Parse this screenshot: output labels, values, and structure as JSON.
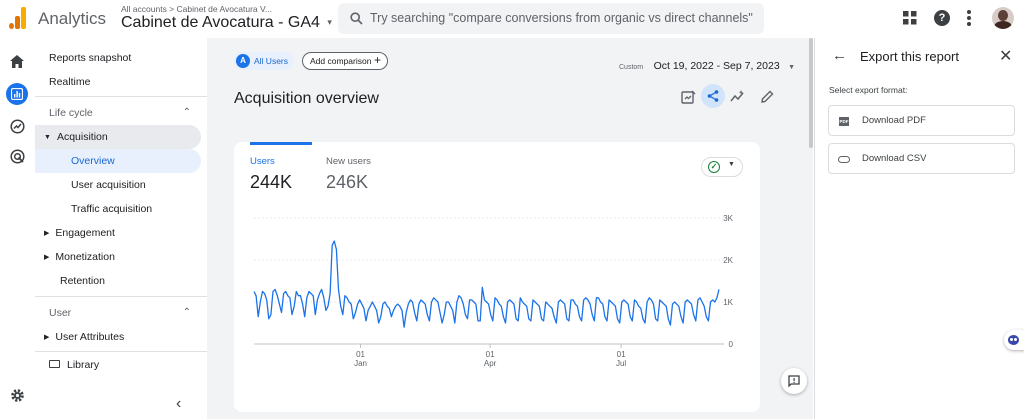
{
  "header": {
    "app_name": "Analytics",
    "breadcrumb": "All accounts > Cabinet de Avocatura V...",
    "property_name": "Cabinet de Avocatura - GA4",
    "search_placeholder": "Try searching \"compare conversions from organic vs direct channels\""
  },
  "nav": {
    "reports_snapshot": "Reports snapshot",
    "realtime": "Realtime",
    "lifecycle_label": "Life cycle",
    "acquisition": "Acquisition",
    "overview": "Overview",
    "user_acquisition": "User acquisition",
    "traffic_acquisition": "Traffic acquisition",
    "engagement": "Engagement",
    "monetization": "Monetization",
    "retention": "Retention",
    "user_label": "User",
    "user_attributes": "User Attributes",
    "library": "Library"
  },
  "toolbar": {
    "all_users": "All Users",
    "all_users_badge": "A",
    "add_comparison": "Add comparison",
    "date_prefix": "Custom",
    "date_range": "Oct 19, 2022 - Sep 7, 2023"
  },
  "page": {
    "title": "Acquisition overview"
  },
  "card": {
    "metric1_label": "Users",
    "metric1_value": "244K",
    "metric2_label": "New users",
    "metric2_value": "246K"
  },
  "chart_data": {
    "type": "line",
    "title": "",
    "xlabel": "",
    "ylabel": "",
    "ylim": [
      0,
      3000
    ],
    "y_ticks": [
      "0",
      "1K",
      "2K",
      "3K"
    ],
    "x_ticks": [
      {
        "day": "01",
        "month": "Jan"
      },
      {
        "day": "01",
        "month": "Apr"
      },
      {
        "day": "01",
        "month": "Jul"
      }
    ],
    "x_start": "2022-10-19",
    "x_end": "2023-09-07",
    "series": [
      {
        "name": "Users",
        "color": "#1a73e8",
        "values": [
          1250,
          1150,
          650,
          1000,
          1250,
          1200,
          1050,
          600,
          700,
          1250,
          1300,
          1150,
          950,
          750,
          1200,
          1250,
          1150,
          1100,
          700,
          900,
          1250,
          1150,
          1150,
          950,
          650,
          1100,
          1250,
          1200,
          1150,
          700,
          1050,
          1200,
          1300,
          1100,
          800,
          900,
          1200,
          2350,
          2450,
          2250,
          1300,
          900,
          700,
          1150,
          1100,
          1000,
          950,
          600,
          750,
          950,
          1050,
          950,
          850,
          550,
          800,
          900,
          1000,
          900,
          800,
          500,
          650,
          950,
          1000,
          900,
          850,
          650,
          800,
          900,
          950,
          900,
          800,
          400,
          750,
          950,
          1050,
          1000,
          750,
          550,
          950,
          1050,
          1000,
          950,
          700,
          550,
          1000,
          1100,
          1050,
          1000,
          750,
          500,
          700,
          1000,
          1000,
          900,
          800,
          500,
          1000,
          1150,
          1100,
          950,
          700,
          600,
          1050,
          1050,
          1000,
          950,
          550,
          550,
          1350,
          1050,
          1000,
          950,
          700,
          550,
          1100,
          1050,
          950,
          900,
          650,
          500,
          1000,
          1050,
          1000,
          950,
          600,
          550,
          1100,
          1000,
          950,
          900,
          600,
          550,
          1050,
          1000,
          950,
          900,
          600,
          550,
          1000,
          950,
          900,
          850,
          650,
          500,
          1000,
          1050,
          1000,
          950,
          600,
          550,
          1050,
          1050,
          950,
          900,
          650,
          550,
          1050,
          1100,
          1050,
          950,
          700,
          550,
          1100,
          1100,
          1000,
          950,
          650,
          550,
          1050,
          1000,
          950,
          900,
          600,
          500,
          1000,
          1050,
          1000,
          950,
          650,
          550,
          1050,
          1000,
          900,
          850,
          600,
          500,
          1000,
          1100,
          1050,
          950,
          600,
          550,
          1050,
          1000,
          950,
          900,
          600,
          450,
          950,
          1000,
          950,
          900,
          650,
          500,
          1000,
          1050,
          1000,
          950,
          700,
          550,
          1050,
          1100,
          1000,
          900,
          650,
          550,
          1000,
          1050,
          1000,
          1100,
          1300
        ]
      }
    ]
  },
  "panel": {
    "title": "Export this report",
    "subtitle": "Select export format:",
    "pdf_label": "Download PDF",
    "pdf_badge": "PDF",
    "csv_label": "Download CSV"
  },
  "colors": {
    "brand_orange": "#f9ab00",
    "brand_dark_orange": "#e37400",
    "accent_blue": "#1a73e8",
    "selected_bg": "#e8f0fe",
    "active_group_bg": "#e8eaed"
  }
}
